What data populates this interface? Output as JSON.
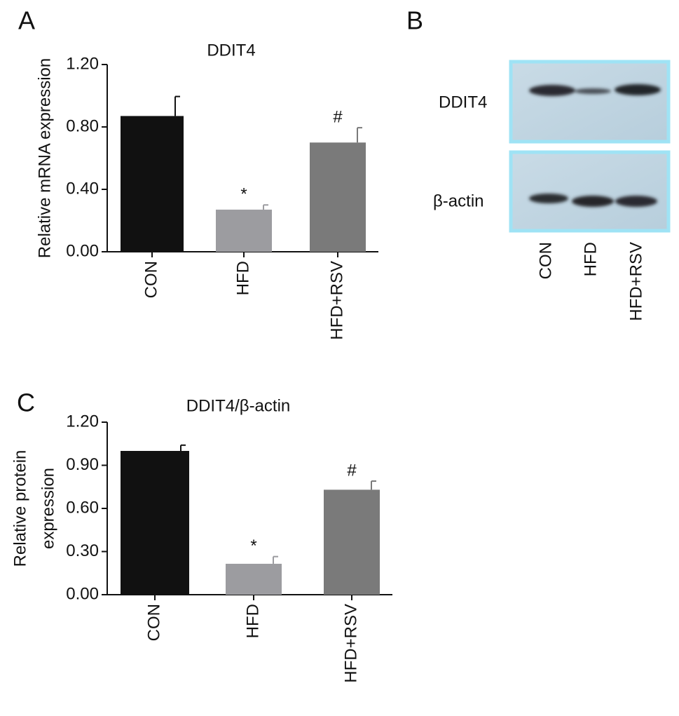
{
  "panels": [
    "A",
    "B",
    "C"
  ],
  "chart_data": [
    {
      "type": "bar",
      "title": "DDIT4",
      "y_label": [
        "Relative mRNA expression"
      ],
      "categories": [
        "CON",
        "HFD",
        "HFD+RSV"
      ],
      "values": [
        0.87,
        0.27,
        0.7
      ],
      "errors": [
        0.125,
        0.03,
        0.095
      ],
      "annotations": [
        null,
        "*",
        "#"
      ],
      "colors": [
        "#111111",
        "#9c9ca0",
        "#7a7a7a"
      ],
      "ylim": [
        0,
        1.2
      ],
      "yticks": [
        {
          "value": 0,
          "label": "0.00"
        },
        {
          "value": 0.4,
          "label": "0.40"
        },
        {
          "value": 0.8,
          "label": "0.80"
        },
        {
          "value": 1.2,
          "label": "1.20"
        }
      ]
    },
    {
      "type": "bar",
      "title": "DDIT4/β-actin",
      "y_label": [
        "Relative protein",
        "expression"
      ],
      "categories": [
        "CON",
        "HFD",
        "HFD+RSV"
      ],
      "values": [
        1.0,
        0.215,
        0.73
      ],
      "errors": [
        0.04,
        0.05,
        0.06
      ],
      "annotations": [
        null,
        "*",
        "#"
      ],
      "colors": [
        "#111111",
        "#9c9ca0",
        "#7a7a7a"
      ],
      "ylim": [
        0,
        1.2
      ],
      "yticks": [
        {
          "value": 0,
          "label": "0.00"
        },
        {
          "value": 0.3,
          "label": "0.30"
        },
        {
          "value": 0.6,
          "label": "0.60"
        },
        {
          "value": 0.9,
          "label": "0.90"
        },
        {
          "value": 1.2,
          "label": "1.20"
        }
      ]
    }
  ],
  "blot": {
    "rows": [
      "DDIT4",
      "β-actin"
    ],
    "lanes": [
      "CON",
      "HFD",
      "HFD+RSV"
    ]
  }
}
